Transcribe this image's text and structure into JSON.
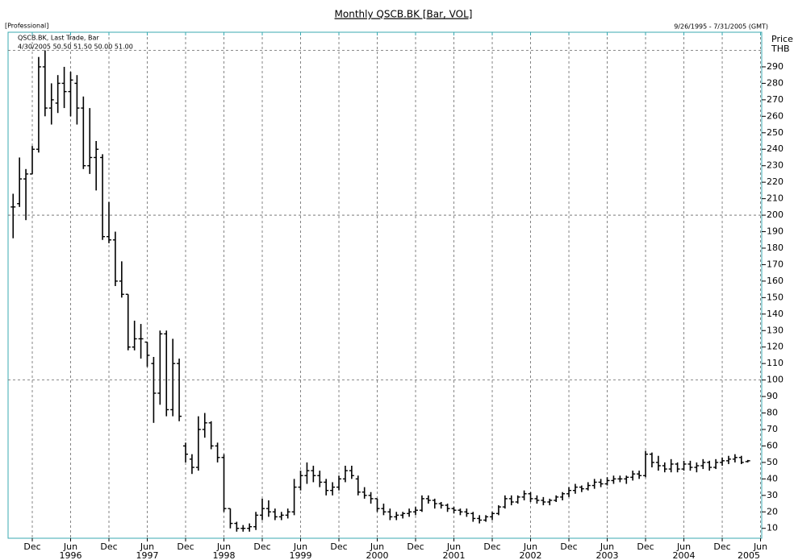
{
  "chart_data": {
    "type": "ohlc",
    "title": "Monthly QSCB.BK [Bar, VOL]",
    "edition": "[Professional]",
    "date_range": "9/26/1995 - 7/31/2005 (GMT)",
    "legend": "QSCB.BK, Last Trade, Bar",
    "last_trade": "4/30/2005 50.50 51.50 50.00 51.00",
    "y_axis_label": [
      "Price",
      "THB"
    ],
    "color": "#000000",
    "x": [
      "1995-09",
      "1995-10",
      "1995-11",
      "1995-12",
      "1996-01",
      "1996-02",
      "1996-03",
      "1996-04",
      "1996-05",
      "1996-06",
      "1996-07",
      "1996-08",
      "1996-09",
      "1996-10",
      "1996-11",
      "1996-12",
      "1997-01",
      "1997-02",
      "1997-03",
      "1997-04",
      "1997-05",
      "1997-06",
      "1997-07",
      "1997-08",
      "1997-09",
      "1997-10",
      "1997-11",
      "1997-12",
      "1998-01",
      "1998-02",
      "1998-03",
      "1998-04",
      "1998-05",
      "1998-06",
      "1998-07",
      "1998-08",
      "1998-09",
      "1998-10",
      "1998-11",
      "1998-12",
      "1999-01",
      "1999-02",
      "1999-03",
      "1999-04",
      "1999-05",
      "1999-06",
      "1999-07",
      "1999-08",
      "1999-09",
      "1999-10",
      "1999-11",
      "1999-12",
      "2000-01",
      "2000-02",
      "2000-03",
      "2000-04",
      "2000-05",
      "2000-06",
      "2000-07",
      "2000-08",
      "2000-09",
      "2000-10",
      "2000-11",
      "2000-12",
      "2001-01",
      "2001-02",
      "2001-03",
      "2001-04",
      "2001-05",
      "2001-06",
      "2001-07",
      "2001-08",
      "2001-09",
      "2001-10",
      "2001-11",
      "2001-12",
      "2002-01",
      "2002-02",
      "2002-03",
      "2002-04",
      "2002-05",
      "2002-06",
      "2002-07",
      "2002-08",
      "2002-09",
      "2002-10",
      "2002-11",
      "2002-12",
      "2003-01",
      "2003-02",
      "2003-03",
      "2003-04",
      "2003-05",
      "2003-06",
      "2003-07",
      "2003-08",
      "2003-09",
      "2003-10",
      "2003-11",
      "2003-12",
      "2004-01",
      "2004-02",
      "2004-03",
      "2004-04",
      "2004-05",
      "2004-06",
      "2004-07",
      "2004-08",
      "2004-09",
      "2004-10",
      "2004-11",
      "2004-12",
      "2005-01",
      "2005-02",
      "2005-03",
      "2005-04"
    ],
    "ohlc": [
      [
        205,
        213,
        186,
        205
      ],
      [
        207,
        235,
        205,
        222
      ],
      [
        222,
        228,
        197,
        225
      ],
      [
        225,
        242,
        225,
        240
      ],
      [
        240,
        296,
        238,
        290
      ],
      [
        290,
        300,
        260,
        265
      ],
      [
        265,
        280,
        255,
        270
      ],
      [
        268,
        285,
        262,
        280
      ],
      [
        280,
        290,
        265,
        275
      ],
      [
        275,
        287,
        260,
        282
      ],
      [
        280,
        285,
        255,
        265
      ],
      [
        265,
        272,
        228,
        230
      ],
      [
        230,
        265,
        225,
        235
      ],
      [
        235,
        245,
        215,
        240
      ],
      [
        235,
        237,
        185,
        187
      ],
      [
        187,
        208,
        183,
        185
      ],
      [
        185,
        190,
        157,
        160
      ],
      [
        160,
        172,
        150,
        152
      ],
      [
        152,
        152,
        118,
        120
      ],
      [
        120,
        136,
        118,
        125
      ],
      [
        125,
        134,
        113,
        125
      ],
      [
        123,
        123,
        108,
        115
      ],
      [
        110,
        114,
        74,
        92
      ],
      [
        92,
        130,
        85,
        128
      ],
      [
        128,
        130,
        78,
        82
      ],
      [
        82,
        125,
        78,
        110
      ],
      [
        110,
        113,
        75,
        78
      ],
      [
        60,
        62,
        50,
        55
      ],
      [
        52,
        55,
        43,
        47
      ],
      [
        47,
        78,
        45,
        70
      ],
      [
        70,
        80,
        65,
        74
      ],
      [
        74,
        75,
        58,
        60
      ],
      [
        60,
        62,
        50,
        53
      ],
      [
        53,
        55,
        20,
        22
      ],
      [
        22,
        22,
        10,
        13
      ],
      [
        13,
        14,
        8,
        10
      ],
      [
        10,
        12,
        8,
        10
      ],
      [
        10,
        13,
        8,
        11
      ],
      [
        11,
        20,
        9,
        18
      ],
      [
        18,
        28,
        15,
        22
      ],
      [
        22,
        27,
        17,
        20
      ],
      [
        20,
        22,
        15,
        17
      ],
      [
        17,
        20,
        15,
        18
      ],
      [
        18,
        22,
        16,
        20
      ],
      [
        20,
        40,
        18,
        35
      ],
      [
        35,
        45,
        33,
        42
      ],
      [
        42,
        50,
        37,
        45
      ],
      [
        45,
        48,
        38,
        42
      ],
      [
        42,
        45,
        35,
        38
      ],
      [
        38,
        40,
        30,
        33
      ],
      [
        33,
        38,
        30,
        35
      ],
      [
        35,
        42,
        33,
        40
      ],
      [
        40,
        48,
        38,
        45
      ],
      [
        45,
        48,
        40,
        42
      ],
      [
        40,
        42,
        30,
        32
      ],
      [
        32,
        35,
        28,
        30
      ],
      [
        30,
        32,
        25,
        28
      ],
      [
        28,
        28,
        20,
        22
      ],
      [
        22,
        25,
        18,
        20
      ],
      [
        20,
        22,
        15,
        17
      ],
      [
        17,
        20,
        15,
        18
      ],
      [
        18,
        20,
        16,
        19
      ],
      [
        19,
        22,
        17,
        20
      ],
      [
        20,
        23,
        18,
        21
      ],
      [
        21,
        30,
        20,
        28
      ],
      [
        28,
        30,
        25,
        27
      ],
      [
        27,
        28,
        22,
        25
      ],
      [
        25,
        26,
        22,
        24
      ],
      [
        24,
        25,
        20,
        22
      ],
      [
        22,
        23,
        19,
        21
      ],
      [
        21,
        22,
        18,
        20
      ],
      [
        20,
        22,
        17,
        19
      ],
      [
        19,
        20,
        14,
        16
      ],
      [
        16,
        18,
        13,
        15
      ],
      [
        15,
        18,
        14,
        17
      ],
      [
        17,
        20,
        15,
        19
      ],
      [
        19,
        24,
        18,
        23
      ],
      [
        23,
        30,
        22,
        28
      ],
      [
        28,
        30,
        24,
        26
      ],
      [
        26,
        30,
        25,
        29
      ],
      [
        29,
        33,
        27,
        31
      ],
      [
        31,
        32,
        26,
        28
      ],
      [
        28,
        30,
        25,
        27
      ],
      [
        27,
        29,
        24,
        26
      ],
      [
        26,
        28,
        24,
        27
      ],
      [
        27,
        30,
        26,
        29
      ],
      [
        29,
        32,
        27,
        31
      ],
      [
        31,
        35,
        29,
        33
      ],
      [
        33,
        37,
        31,
        35
      ],
      [
        35,
        36,
        32,
        34
      ],
      [
        34,
        38,
        33,
        36
      ],
      [
        36,
        40,
        34,
        38
      ],
      [
        38,
        40,
        35,
        37
      ],
      [
        37,
        41,
        36,
        39
      ],
      [
        39,
        42,
        37,
        40
      ],
      [
        40,
        42,
        38,
        40
      ],
      [
        40,
        42,
        37,
        41
      ],
      [
        41,
        45,
        39,
        43
      ],
      [
        43,
        45,
        40,
        42
      ],
      [
        42,
        57,
        41,
        55
      ],
      [
        55,
        56,
        47,
        50
      ],
      [
        50,
        54,
        45,
        48
      ],
      [
        48,
        50,
        44,
        46
      ],
      [
        46,
        52,
        44,
        49
      ],
      [
        49,
        50,
        44,
        46
      ],
      [
        46,
        51,
        45,
        49
      ],
      [
        49,
        51,
        45,
        47
      ],
      [
        47,
        50,
        44,
        48
      ],
      [
        48,
        52,
        46,
        50
      ],
      [
        50,
        51,
        45,
        47
      ],
      [
        47,
        52,
        46,
        50
      ],
      [
        50,
        53,
        48,
        51
      ],
      [
        51,
        54,
        49,
        52
      ],
      [
        52,
        55,
        50,
        53
      ],
      [
        53,
        54,
        49,
        50
      ],
      [
        50.5,
        51.5,
        50,
        51
      ]
    ],
    "ylim": [
      4,
      311
    ],
    "yticks": [
      10,
      20,
      30,
      40,
      50,
      60,
      70,
      80,
      90,
      100,
      110,
      120,
      130,
      140,
      150,
      160,
      170,
      180,
      190,
      200,
      210,
      220,
      230,
      240,
      250,
      260,
      270,
      280,
      290
    ],
    "y_grid": [
      100,
      200,
      300
    ],
    "xticks": [
      {
        "value": "1995-12",
        "label": "Dec"
      },
      {
        "value": "1996-06",
        "label": "Jun"
      },
      {
        "value": "1996-12",
        "label": "Dec"
      },
      {
        "value": "1997-06",
        "label": "Jun"
      },
      {
        "value": "1997-12",
        "label": "Dec"
      },
      {
        "value": "1998-06",
        "label": "Jun"
      },
      {
        "value": "1998-12",
        "label": "Dec"
      },
      {
        "value": "1999-06",
        "label": "Jun"
      },
      {
        "value": "1999-12",
        "label": "Dec"
      },
      {
        "value": "2000-06",
        "label": "Jun"
      },
      {
        "value": "2000-12",
        "label": "Dec"
      },
      {
        "value": "2001-06",
        "label": "Jun"
      },
      {
        "value": "2001-12",
        "label": "Dec"
      },
      {
        "value": "2002-06",
        "label": "Jun"
      },
      {
        "value": "2002-12",
        "label": "Dec"
      },
      {
        "value": "2003-06",
        "label": "Jun"
      },
      {
        "value": "2003-12",
        "label": "Dec"
      },
      {
        "value": "2004-06",
        "label": "Jun"
      },
      {
        "value": "2004-12",
        "label": "Dec"
      },
      {
        "value": "2005-06",
        "label": "Jun"
      }
    ],
    "xyears": [
      {
        "value": "1996-06",
        "label": "1996"
      },
      {
        "value": "1997-06",
        "label": "1997"
      },
      {
        "value": "1998-06",
        "label": "1998"
      },
      {
        "value": "1999-06",
        "label": "1999"
      },
      {
        "value": "2000-06",
        "label": "2000"
      },
      {
        "value": "2001-06",
        "label": "2001"
      },
      {
        "value": "2002-06",
        "label": "2002"
      },
      {
        "value": "2003-06",
        "label": "2003"
      },
      {
        "value": "2004-06",
        "label": "2004"
      },
      {
        "value": "2005-06",
        "label": "2005"
      }
    ],
    "grid": true
  }
}
